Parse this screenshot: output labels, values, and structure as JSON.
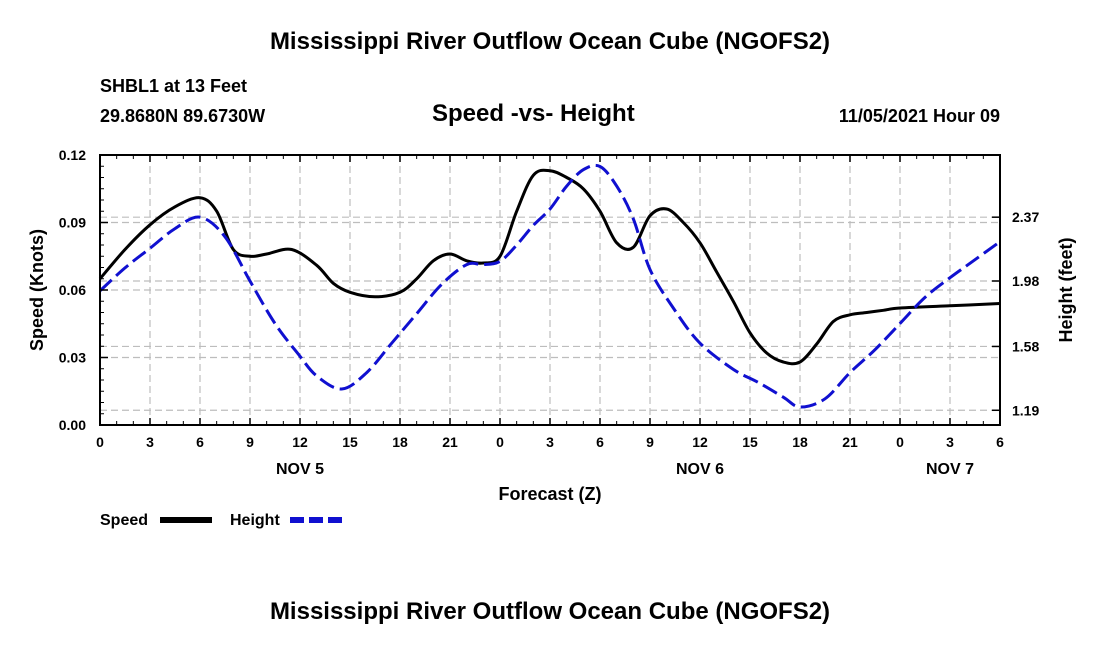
{
  "page": {
    "title": "Mississippi River Outflow Ocean Cube (NGOFS2)",
    "station": "SHBL1 at 13 Feet",
    "coords": "29.8680N  89.6730W",
    "subtitle": "Speed -vs- Height",
    "datetime": "11/05/2021 Hour 09",
    "footer_title": "Mississippi River Outflow Ocean Cube (NGOFS2)"
  },
  "chart_data": {
    "type": "line",
    "title": "Speed -vs- Height",
    "xlabel": "Forecast (Z)",
    "ylabel": "Speed (Knots)",
    "y2label": "Height (feet)",
    "xlim": [
      0,
      54
    ],
    "ylim": [
      0,
      0.12
    ],
    "y2lim": [
      1.1,
      2.75
    ],
    "x_tick_values": [
      0,
      3,
      6,
      9,
      12,
      15,
      18,
      21,
      24,
      27,
      30,
      33,
      36,
      39,
      42,
      45,
      48,
      51,
      54
    ],
    "x_tick_labels": [
      "0",
      "3",
      "6",
      "9",
      "12",
      "15",
      "18",
      "21",
      "0",
      "3",
      "6",
      "9",
      "12",
      "15",
      "18",
      "21",
      "0",
      "3",
      "6"
    ],
    "day_labels": [
      {
        "x": 12,
        "label": "NOV 5"
      },
      {
        "x": 36,
        "label": "NOV 6"
      },
      {
        "x": 51,
        "label": "NOV 7"
      }
    ],
    "y_ticks": [
      0,
      0.03,
      0.06,
      0.09,
      0.12
    ],
    "y_tick_labels": [
      "0.00",
      "0.03",
      "0.06",
      "0.09",
      "0.12"
    ],
    "y2_ticks": [
      1.19,
      1.58,
      1.98,
      2.37
    ],
    "y2_tick_labels": [
      "1.19",
      "1.58",
      "1.98",
      "2.37"
    ],
    "grid": true,
    "series": [
      {
        "name": "Speed",
        "axis": "left",
        "color": "#000000",
        "dashed": false,
        "x": [
          0,
          1.5,
          3,
          4.5,
          6,
          7,
          8,
          9,
          10,
          11.5,
          13,
          14,
          15,
          16.5,
          18,
          19,
          20,
          21,
          22,
          23,
          24,
          25,
          26,
          27,
          28,
          29,
          30,
          31,
          32,
          33,
          34,
          35,
          36,
          37,
          38,
          39,
          40,
          41,
          42,
          43,
          44,
          45,
          46,
          47,
          48,
          51,
          54
        ],
        "values": [
          0.065,
          0.078,
          0.089,
          0.097,
          0.101,
          0.095,
          0.078,
          0.075,
          0.076,
          0.078,
          0.071,
          0.063,
          0.059,
          0.057,
          0.059,
          0.065,
          0.073,
          0.076,
          0.073,
          0.072,
          0.075,
          0.095,
          0.111,
          0.113,
          0.11,
          0.105,
          0.095,
          0.081,
          0.079,
          0.093,
          0.096,
          0.09,
          0.081,
          0.068,
          0.055,
          0.041,
          0.032,
          0.028,
          0.028,
          0.036,
          0.046,
          0.049,
          0.05,
          0.051,
          0.052,
          0.053,
          0.054
        ]
      },
      {
        "name": "Height",
        "axis": "right",
        "color": "#1010d0",
        "dashed": true,
        "x": [
          0,
          1.5,
          3,
          4.5,
          6,
          7.5,
          9,
          10.5,
          12,
          13,
          14.5,
          16,
          17.5,
          19,
          20.5,
          22,
          23,
          24,
          25,
          26,
          27,
          28,
          29,
          30,
          31,
          32,
          33,
          34.5,
          36,
          38,
          39.5,
          41,
          42,
          43.5,
          45,
          46.5,
          48,
          49.5,
          51,
          52.5,
          54
        ],
        "values": [
          1.92,
          2.06,
          2.18,
          2.3,
          2.37,
          2.25,
          1.98,
          1.72,
          1.52,
          1.4,
          1.32,
          1.42,
          1.6,
          1.78,
          1.96,
          2.08,
          2.08,
          2.1,
          2.2,
          2.32,
          2.42,
          2.56,
          2.66,
          2.68,
          2.56,
          2.36,
          2.05,
          1.8,
          1.6,
          1.44,
          1.36,
          1.27,
          1.21,
          1.26,
          1.42,
          1.56,
          1.72,
          1.88,
          2.0,
          2.11,
          2.22
        ]
      }
    ],
    "legend": {
      "position": "bottom-left",
      "items": [
        "Speed",
        "Height"
      ]
    }
  }
}
